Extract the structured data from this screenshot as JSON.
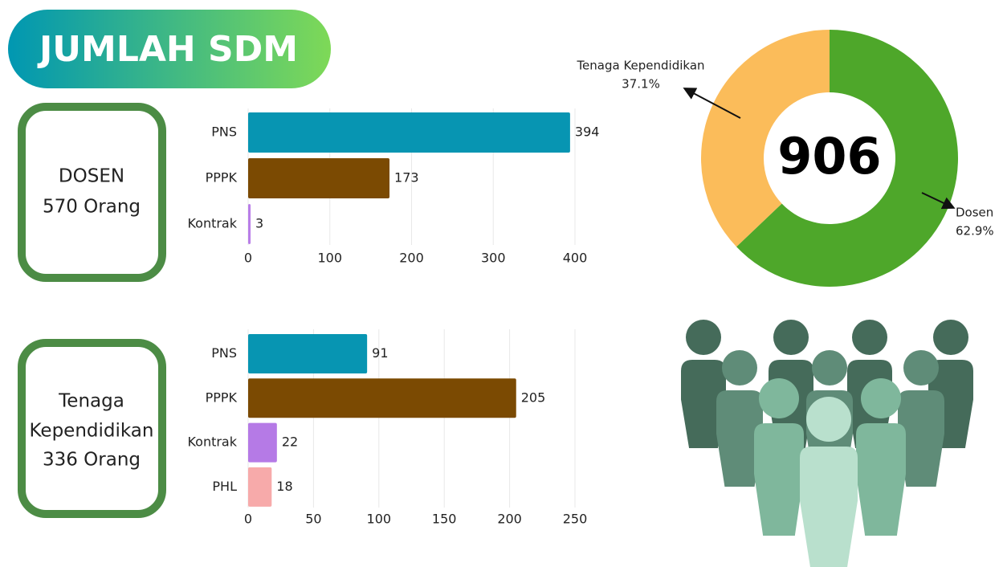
{
  "header": {
    "title": "JUMLAH SDM"
  },
  "boxes": [
    {
      "lines": [
        "DOSEN",
        "570 Orang"
      ]
    },
    {
      "lines": [
        "Tenaga",
        "Kependidikan",
        "336 Orang"
      ]
    }
  ],
  "chart_data": [
    {
      "type": "hbar",
      "categories": [
        "PNS",
        "PPPK",
        "Kontrak"
      ],
      "values": [
        394,
        173,
        3
      ],
      "colors": [
        "#0795b2",
        "#7b4a02",
        "#b97ee8"
      ],
      "xlim": [
        0,
        400
      ],
      "xticks": [
        0,
        100,
        200,
        300,
        400
      ],
      "grid": true
    },
    {
      "type": "hbar",
      "categories": [
        "PNS",
        "PPPK",
        "Kontrak",
        "PHL"
      ],
      "values": [
        91,
        205,
        22,
        18
      ],
      "colors": [
        "#0795b2",
        "#7b4a02",
        "#b57ae6",
        "#f7aaaa"
      ],
      "xlim": [
        0,
        250
      ],
      "xticks": [
        0,
        50,
        100,
        150,
        200,
        250
      ],
      "grid": true
    },
    {
      "type": "donut",
      "total": 906,
      "categories": [
        "Dosen",
        "Tenaga Kependidikan"
      ],
      "values": [
        62.9,
        37.1
      ],
      "value_labels": [
        "62.9%",
        "37.1%"
      ],
      "colors": [
        "#4ea72a",
        "#fbbc5a"
      ]
    }
  ]
}
